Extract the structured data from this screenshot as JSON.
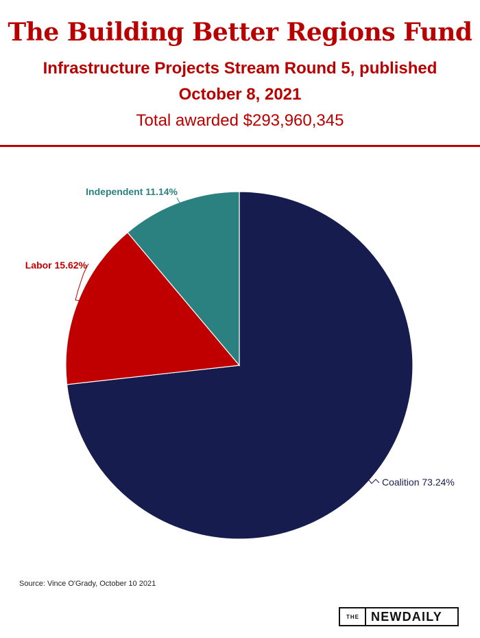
{
  "header": {
    "title": "The Building Better Regions Fund",
    "subtitle_line1": "Infrastructure Projects Stream Round 5, published",
    "subtitle_line2": "October 8, 2021",
    "subtitle_line3": "Total awarded $293,960,345"
  },
  "chart_data": {
    "type": "pie",
    "slices": [
      {
        "label": "Coalition 73.24%",
        "value": 73.24,
        "color": "#171c4e"
      },
      {
        "label": "Labor 15.62%",
        "value": 15.62,
        "color": "#c00000"
      },
      {
        "label": "Independent 11.14%",
        "value": 11.14,
        "color": "#2b8080"
      }
    ],
    "start": "12 o'clock",
    "direction": "clockwise"
  },
  "footer": {
    "source": "Source: Vince O'Grady, October 10 2021",
    "logo_small": "THE",
    "logo_big": "NEWDAILY"
  }
}
